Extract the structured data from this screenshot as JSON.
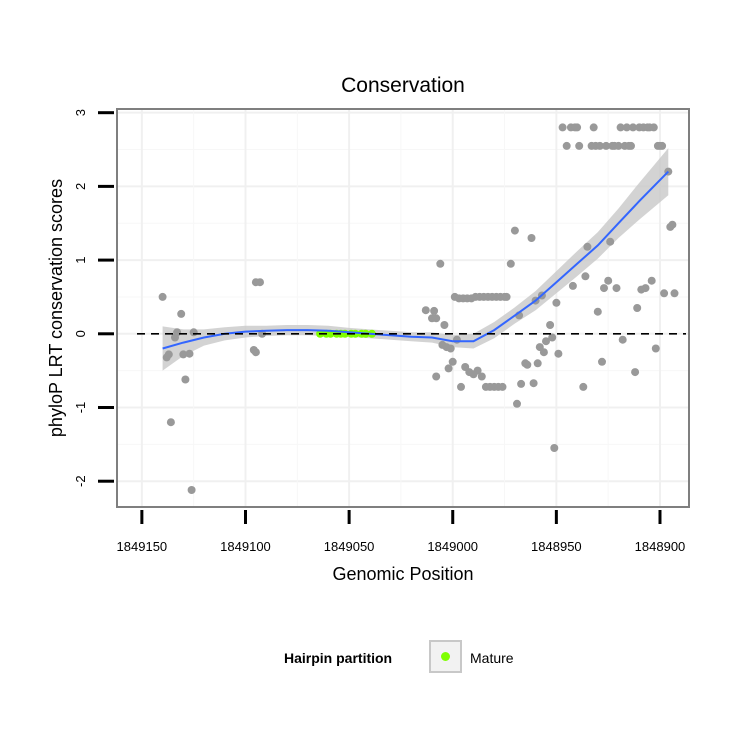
{
  "chart_data": {
    "type": "scatter",
    "title": "Conservation",
    "xlabel": "Genomic Position",
    "ylabel": "phyloP LRT conservation scores",
    "x_reversed": true,
    "xlim": [
      1849162,
      1848886
    ],
    "ylim": [
      -2.35,
      3.05
    ],
    "x_ticks": [
      1849150,
      1849100,
      1849050,
      1849000,
      1848950,
      1848900
    ],
    "x_tick_labels": [
      "1849150",
      "1849100",
      "1849050",
      "1849000",
      "1848950",
      "1848900"
    ],
    "y_ticks": [
      -2,
      -1,
      0,
      1,
      2,
      3
    ],
    "y_tick_labels": [
      "-2",
      "-1",
      "0",
      "1",
      "2",
      "3"
    ],
    "grid": true,
    "reference_line_y": 0,
    "legend": {
      "title": "Hairpin partition",
      "position": "bottom",
      "entries": [
        {
          "label": "Mature",
          "color": "#7fff00"
        }
      ]
    },
    "colors": {
      "points": "#999999",
      "mature": "#7fff00",
      "smooth": "#3366ff",
      "ribbon": "#c8c8c8"
    },
    "points": [
      [
        1849140,
        0.5
      ],
      [
        1849138,
        -0.32
      ],
      [
        1849137,
        -0.28
      ],
      [
        1849136,
        -1.2
      ],
      [
        1849134,
        -0.05
      ],
      [
        1849133,
        0.02
      ],
      [
        1849131,
        0.27
      ],
      [
        1849130,
        -0.28
      ],
      [
        1849129,
        -0.62
      ],
      [
        1849127,
        -0.27
      ],
      [
        1849126,
        -2.12
      ],
      [
        1849125,
        0.02
      ],
      [
        1849096,
        -0.22
      ],
      [
        1849095,
        -0.25
      ],
      [
        1849095,
        0.7
      ],
      [
        1849093,
        0.7
      ],
      [
        1849092,
        0.0
      ],
      [
        1849013,
        0.32
      ],
      [
        1849010,
        0.21
      ],
      [
        1849009,
        0.31
      ],
      [
        1849008,
        0.21
      ],
      [
        1849008,
        -0.58
      ],
      [
        1849006,
        0.95
      ],
      [
        1849005,
        -0.15
      ],
      [
        1849004,
        0.12
      ],
      [
        1849003,
        -0.18
      ],
      [
        1849002,
        -0.47
      ],
      [
        1849001,
        -0.2
      ],
      [
        1849000,
        -0.38
      ],
      [
        1848999,
        0.5
      ],
      [
        1848998,
        -0.08
      ],
      [
        1848997,
        0.48
      ],
      [
        1848996,
        -0.72
      ],
      [
        1848995,
        0.48
      ],
      [
        1848994,
        -0.45
      ],
      [
        1848993,
        0.48
      ],
      [
        1848992,
        -0.52
      ],
      [
        1848991,
        0.48
      ],
      [
        1848990,
        -0.55
      ],
      [
        1848989,
        0.5
      ],
      [
        1848988,
        -0.5
      ],
      [
        1848987,
        0.5
      ],
      [
        1848986,
        -0.58
      ],
      [
        1848985,
        0.5
      ],
      [
        1848984,
        -0.72
      ],
      [
        1848983,
        0.5
      ],
      [
        1848982,
        -0.72
      ],
      [
        1848981,
        0.5
      ],
      [
        1848980,
        -0.72
      ],
      [
        1848979,
        0.5
      ],
      [
        1848978,
        -0.72
      ],
      [
        1848977,
        0.5
      ],
      [
        1848976,
        -0.72
      ],
      [
        1848975,
        0.5
      ],
      [
        1848974,
        0.5
      ],
      [
        1848972,
        0.95
      ],
      [
        1848970,
        1.4
      ],
      [
        1848969,
        -0.95
      ],
      [
        1848968,
        0.25
      ],
      [
        1848967,
        -0.68
      ],
      [
        1848965,
        -0.4
      ],
      [
        1848964,
        -0.42
      ],
      [
        1848962,
        1.3
      ],
      [
        1848961,
        -0.67
      ],
      [
        1848960,
        0.45
      ],
      [
        1848959,
        -0.4
      ],
      [
        1848958,
        -0.18
      ],
      [
        1848957,
        0.52
      ],
      [
        1848956,
        -0.25
      ],
      [
        1848955,
        -0.1
      ],
      [
        1848953,
        0.12
      ],
      [
        1848952,
        -0.05
      ],
      [
        1848951,
        -1.55
      ],
      [
        1848950,
        0.42
      ],
      [
        1848949,
        -0.27
      ],
      [
        1848947,
        2.8
      ],
      [
        1848945,
        2.55
      ],
      [
        1848943,
        2.8
      ],
      [
        1848942,
        0.65
      ],
      [
        1848941,
        2.8
      ],
      [
        1848940,
        2.8
      ],
      [
        1848939,
        2.55
      ],
      [
        1848937,
        -0.72
      ],
      [
        1848936,
        0.78
      ],
      [
        1848935,
        1.18
      ],
      [
        1848933,
        2.55
      ],
      [
        1848932,
        2.8
      ],
      [
        1848931,
        2.55
      ],
      [
        1848930,
        0.3
      ],
      [
        1848929,
        2.55
      ],
      [
        1848928,
        -0.38
      ],
      [
        1848927,
        0.62
      ],
      [
        1848926,
        2.55
      ],
      [
        1848925,
        0.72
      ],
      [
        1848924,
        1.25
      ],
      [
        1848923,
        2.55
      ],
      [
        1848922,
        2.55
      ],
      [
        1848921,
        0.62
      ],
      [
        1848920,
        2.55
      ],
      [
        1848919,
        2.8
      ],
      [
        1848918,
        -0.08
      ],
      [
        1848917,
        2.55
      ],
      [
        1848916,
        2.8
      ],
      [
        1848915,
        2.55
      ],
      [
        1848914,
        2.55
      ],
      [
        1848913,
        2.8
      ],
      [
        1848912,
        -0.52
      ],
      [
        1848911,
        0.35
      ],
      [
        1848910,
        2.8
      ],
      [
        1848909,
        0.6
      ],
      [
        1848908,
        2.8
      ],
      [
        1848907,
        0.62
      ],
      [
        1848906,
        2.8
      ],
      [
        1848905,
        2.8
      ],
      [
        1848904,
        0.72
      ],
      [
        1848903,
        2.8
      ],
      [
        1848902,
        -0.2
      ],
      [
        1848901,
        2.55
      ],
      [
        1848900,
        2.55
      ],
      [
        1848899,
        2.55
      ],
      [
        1848898,
        0.55
      ],
      [
        1848896,
        2.2
      ],
      [
        1848895,
        1.45
      ],
      [
        1848894,
        1.48
      ],
      [
        1848893,
        0.55
      ]
    ],
    "mature_points": [
      [
        1849064,
        0.0
      ],
      [
        1849061,
        0.0
      ],
      [
        1849059,
        0.0
      ],
      [
        1849056,
        0.0
      ],
      [
        1849054,
        0.0
      ],
      [
        1849052,
        0.0
      ],
      [
        1849049,
        0.0
      ],
      [
        1849047,
        0.0
      ],
      [
        1849044,
        0.0
      ],
      [
        1849042,
        0.0
      ],
      [
        1849039,
        0.0
      ]
    ],
    "smooth": {
      "x": [
        1849140,
        1849130,
        1849120,
        1849110,
        1849100,
        1849090,
        1849080,
        1849070,
        1849060,
        1849050,
        1849040,
        1849030,
        1849020,
        1849010,
        1849000,
        1848990,
        1848980,
        1848970,
        1848960,
        1848950,
        1848940,
        1848930,
        1848920,
        1848910,
        1848896
      ],
      "y": [
        -0.2,
        -0.12,
        -0.05,
        0.0,
        0.03,
        0.04,
        0.05,
        0.05,
        0.04,
        0.02,
        0.0,
        -0.02,
        -0.04,
        -0.05,
        -0.1,
        -0.1,
        0.05,
        0.25,
        0.45,
        0.7,
        0.95,
        1.2,
        1.5,
        1.8,
        2.2
      ],
      "ci_low": [
        -0.5,
        -0.3,
        -0.16,
        -0.09,
        -0.05,
        -0.03,
        -0.02,
        -0.02,
        -0.03,
        -0.04,
        -0.06,
        -0.08,
        -0.1,
        -0.12,
        -0.18,
        -0.2,
        -0.06,
        0.14,
        0.32,
        0.55,
        0.78,
        1.02,
        1.3,
        1.55,
        1.88
      ],
      "ci_high": [
        0.1,
        0.06,
        0.06,
        0.09,
        0.11,
        0.11,
        0.12,
        0.12,
        0.11,
        0.08,
        0.06,
        0.04,
        0.02,
        0.02,
        -0.02,
        0.0,
        0.16,
        0.36,
        0.58,
        0.85,
        1.12,
        1.38,
        1.7,
        2.05,
        2.52
      ]
    }
  }
}
